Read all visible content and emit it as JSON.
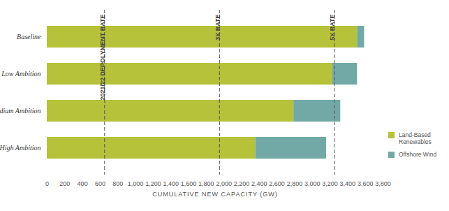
{
  "chart_data": {
    "type": "bar",
    "orientation": "horizontal",
    "stacked": true,
    "categories": [
      "Baseline",
      "Low Ambition",
      "Medium Ambition",
      "High Ambition"
    ],
    "series": [
      {
        "name": "Land-Based Renewables",
        "color": "#b5c23a",
        "values": [
          3510,
          3230,
          2790,
          2360
        ]
      },
      {
        "name": "Offshore Wind",
        "color": "#72a9a6",
        "values": [
          80,
          280,
          530,
          800
        ]
      }
    ],
    "xlabel": "CUMULATIVE NEW CAPACITY (GW)",
    "xlim": [
      0,
      3800
    ],
    "xticks": [
      0,
      200,
      400,
      600,
      800,
      {
        "value": 1000,
        "label": "1,000"
      },
      {
        "value": 1200,
        "label": "1,200"
      },
      {
        "value": 1400,
        "label": "1,400"
      },
      {
        "value": 1600,
        "label": "1,600"
      },
      {
        "value": 1800,
        "label": "1,800"
      },
      {
        "value": 2000,
        "label": "2,000"
      },
      {
        "value": 2200,
        "label": "2,200"
      },
      {
        "value": 2400,
        "label": "2,400"
      },
      {
        "value": 2600,
        "label": "2,600"
      },
      {
        "value": 2800,
        "label": "2,800"
      },
      {
        "value": 3000,
        "label": "3,000"
      },
      {
        "value": 3200,
        "label": "3,200"
      },
      {
        "value": 3400,
        "label": "3,400"
      },
      {
        "value": 3600,
        "label": "3,600"
      },
      {
        "value": 3800,
        "label": "3,800"
      }
    ],
    "annotations": [
      {
        "text": "2021/22 DEPOLYMENT RATE",
        "x": 650
      },
      {
        "text": "3X RATE",
        "x": 1950
      },
      {
        "text": "5X RATE",
        "x": 3250
      }
    ],
    "legend": "right",
    "grid": false
  }
}
